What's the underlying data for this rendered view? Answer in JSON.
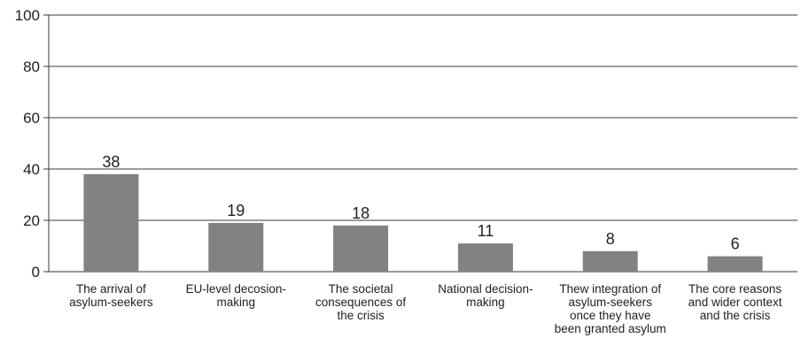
{
  "chart_data": {
    "type": "bar",
    "title": "",
    "xlabel": "",
    "ylabel": "",
    "ylim": [
      0,
      100
    ],
    "yticks": [
      0,
      20,
      40,
      60,
      80,
      100
    ],
    "grid": true,
    "legend": "none",
    "bar_color": "#828282",
    "categories": [
      "The arrival of asylum-seekers",
      "EU-level decosion-making",
      "The societal consequences of the crisis",
      "National decision-making",
      "Thew integration of asylum-seekers once they have been granted asylum",
      "The core reasons and wider context and the crisis"
    ],
    "category_lines": [
      [
        "The arrival of",
        "asylum-seekers"
      ],
      [
        "EU-level decosion-",
        "making"
      ],
      [
        "The societal",
        "consequences of",
        "the crisis"
      ],
      [
        "National decision-",
        "making"
      ],
      [
        "Thew integration of",
        "asylum-seekers",
        "once they have",
        "been granted asylum"
      ],
      [
        "The core reasons",
        "and wider context",
        "and the crisis"
      ]
    ],
    "values": [
      38,
      19,
      18,
      11,
      8,
      6
    ]
  }
}
